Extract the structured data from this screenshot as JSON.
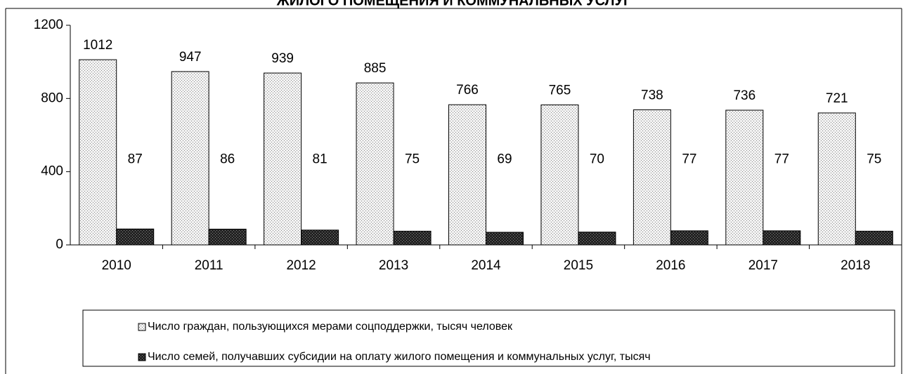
{
  "chart_data": {
    "type": "bar",
    "title": "ЖИЛОГО ПОМЕЩЕНИЯ И КОММУНАЛЬНЫХ УСЛУГ",
    "categories": [
      "2010",
      "2011",
      "2012",
      "2013",
      "2014",
      "2015",
      "2016",
      "2017",
      "2018"
    ],
    "series": [
      {
        "name": "Число граждан,  пользующихся мерами соцподдержки,  тысяч человек",
        "color": "#e6e6e6",
        "values": [
          1012,
          947,
          939,
          885,
          766,
          765,
          738,
          736,
          721
        ]
      },
      {
        "name": "Число семей, получавших субсидии на оплату жилого помещения и коммунальных  услуг, тысяч",
        "color": "#333333",
        "values": [
          87,
          86,
          81,
          75,
          69,
          70,
          77,
          77,
          75
        ]
      }
    ],
    "ylim": [
      0,
      1200
    ],
    "yticks": [
      0,
      400,
      800,
      1200
    ],
    "legend": "bottom"
  }
}
